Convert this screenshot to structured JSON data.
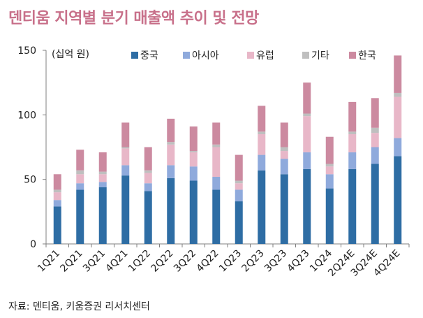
{
  "title": "덴티움 지역별 분기 매출액 추이 및 전망",
  "source": "자료: 덴티움, 키움증권 리서치센터",
  "chart_data": {
    "type": "bar",
    "stacked": true,
    "unit_label": "(십억 원)",
    "ylim": [
      0,
      150
    ],
    "yticks": [
      0,
      50,
      100,
      150
    ],
    "grid": false,
    "legend_position": "top",
    "categories": [
      "1Q21",
      "2Q21",
      "3Q21",
      "4Q21",
      "1Q22",
      "2Q22",
      "3Q22",
      "4Q22",
      "1Q23",
      "2Q23",
      "3Q23",
      "4Q23",
      "1Q24",
      "2Q24E",
      "3Q24E",
      "4Q24E"
    ],
    "series": [
      {
        "name": "중국",
        "color": "#2e6da4",
        "values": [
          29,
          42,
          44,
          53,
          41,
          51,
          49,
          42,
          33,
          57,
          54,
          58,
          43,
          58,
          62,
          68
        ]
      },
      {
        "name": "아시아",
        "color": "#8faadc",
        "values": [
          5,
          5,
          4,
          8,
          6,
          10,
          11,
          10,
          9,
          12,
          12,
          13,
          11,
          13,
          13,
          14
        ]
      },
      {
        "name": "유럽",
        "color": "#e8b7c8",
        "values": [
          6,
          7,
          6,
          13,
          8,
          16,
          11,
          23,
          5,
          16,
          6,
          28,
          6,
          14,
          11,
          32
        ]
      },
      {
        "name": "기타",
        "color": "#bfbfbf",
        "values": [
          2,
          3,
          2,
          1,
          2,
          2,
          1,
          2,
          2,
          2,
          3,
          2,
          2,
          2,
          4,
          3
        ]
      },
      {
        "name": "한국",
        "color": "#cc8aa0",
        "values": [
          12,
          16,
          15,
          19,
          18,
          18,
          19,
          17,
          20,
          20,
          19,
          24,
          21,
          23,
          23,
          29
        ]
      }
    ]
  }
}
